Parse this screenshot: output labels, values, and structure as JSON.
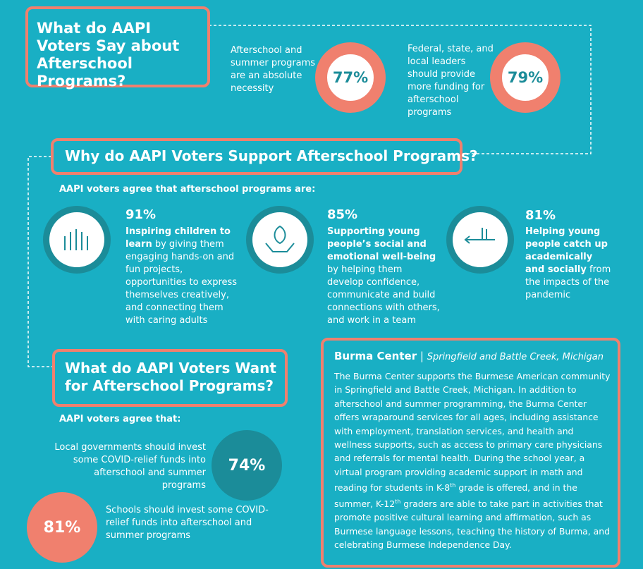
{
  "section1": {
    "title": "What do AAPI Voters Say about Afterschool Programs?",
    "stats": [
      {
        "text": "Afterschool and summer programs are an absolute necessity",
        "value": "77%"
      },
      {
        "text": "Federal, state, and local leaders should provide more funding for afterschool programs",
        "value": "79%"
      }
    ]
  },
  "section2": {
    "title": "Why do AAPI Voters Support Afterschool Programs?",
    "intro": "AAPI voters agree that afterschool programs are:",
    "items": [
      {
        "value": "91%",
        "bold": "Inspiring children to learn",
        "text": " by giving them engaging hands-on and fun projects, opportunities to express themselves creatively, and connecting them with caring adults"
      },
      {
        "value": "85%",
        "bold": "Supporting young people’s social and emotional well-being",
        "text": " by helping them develop confidence, communicate and build connections with others, and work in a team"
      },
      {
        "value": "81%",
        "bold": "Helping young people catch up academically and socially",
        "text": " from the impacts of the pandemic"
      }
    ]
  },
  "section3": {
    "title": "What do AAPI Voters Want for Afterschool Programs?",
    "intro": "AAPI voters agree that:",
    "stats": [
      {
        "text": "Local governments should invest some COVID-relief funds into afterschool and summer programs",
        "value": "74%"
      },
      {
        "text": "Schools should invest some COVID-relief funds into afterschool and summer programs",
        "value": "81%"
      }
    ]
  },
  "spotlight": {
    "title": "Burma Center",
    "location": "Springfield and Battle Creek, Michigan",
    "body": [
      "The Burma Center supports the Burmese American community in Springfield and Battle Creek, Michigan. In addition to afterschool and summer programming, the Burma Center offers wraparound services for all ages, including assistance with employment, translation services, and health and wellness supports, such as access to primary care physicians and referrals for mental health. During the school year, a virtual program providing academic support in math and reading for students in K-8",
      "th",
      " grade is offered, and in the summer, K-12",
      "th",
      " graders are able to take part in activities that promote positive cultural learning and affirmation, such as Burmese language lessons, teaching the history of Burma, and celebrating Burmese Independence Day."
    ]
  }
}
